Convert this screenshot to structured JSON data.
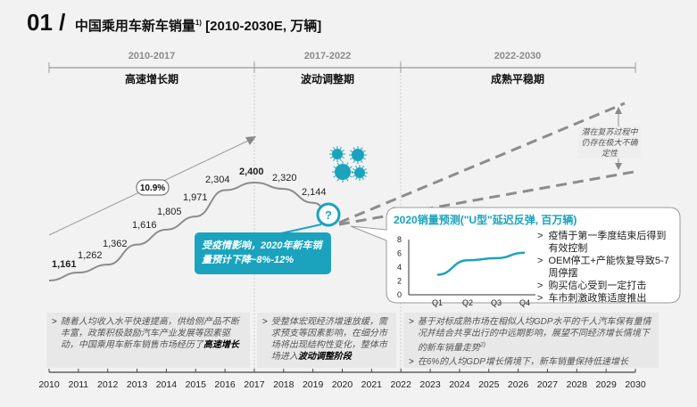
{
  "header": {
    "number": "01 /",
    "title": "中国乘用车新车销量",
    "footnote": "1)",
    "subtitle": "[2010-2030E, 万辆]"
  },
  "periods": [
    {
      "range": "2010-2017",
      "name": "高速增长期"
    },
    {
      "range": "2017-2022",
      "name": "波动调整期"
    },
    {
      "range": "2022-2030",
      "name": "成熟平稳期"
    }
  ],
  "cagr_label": "10.9%",
  "covid_callout": "受疫情影响，2020年新车销量预计下降~8%-12%",
  "question_mark": "?",
  "uncertainty_note": "潜在复苏过程中仍存在极大不确定性",
  "colors": {
    "accent": "#1ba3bd",
    "line": "#8c8c8c",
    "dashed": "#8c8c8c"
  },
  "chart_data": [
    {
      "type": "line",
      "title": "中国乘用车新车销量 [2010-2030E, 万辆]",
      "x": [
        2010,
        2011,
        2012,
        2013,
        2014,
        2015,
        2016,
        2017,
        2018,
        2019
      ],
      "values": [
        1161,
        1262,
        1362,
        1616,
        1805,
        1971,
        2304,
        2400,
        2320,
        2144
      ],
      "value_labels": [
        "1,161",
        "1,262",
        "1,362",
        "1,616",
        "1,805",
        "1,971",
        "2,304",
        "2,400",
        "2,320",
        "2,144"
      ],
      "xticks": [
        "2010",
        "2011",
        "2012",
        "2013",
        "2014",
        "2015",
        "2016",
        "2017",
        "2018",
        "2019",
        "2020",
        "2021",
        "2022",
        "2023",
        "2024",
        "2025",
        "2026",
        "2027",
        "2028",
        "2029",
        "2030"
      ],
      "grid": false
    },
    {
      "type": "line",
      "title": "2020销量预测(\"U型\"延迟反弹, 百万辆)",
      "categories": [
        "Q1",
        "Q2",
        "Q3",
        "Q4"
      ],
      "values": [
        2.9,
        5.0,
        5.3,
        6.1
      ],
      "yticks": [
        "0",
        "2",
        "4",
        "6",
        "8"
      ],
      "ylim": [
        0,
        8
      ]
    }
  ],
  "forecast_bullets": [
    "疫情于第一季度结束后得到有效控制",
    "OEM停工+产能恢复导致5-7周停摆",
    "购买信心受到一定打击",
    "车市刺激政策适度推出"
  ],
  "notes": {
    "period1": {
      "text": "随着人均收入水平快速提高，供给侧产品不断丰富，政策积极鼓励汽车产业发展等因素驱动，中国乘用车新车销售市场经历了",
      "bold": "高速增长"
    },
    "period2": {
      "text": "受整体宏观经济增速放缓，需求预支等因素影响，在细分市场将出现结构性变化，整体市场进入",
      "bold": "波动调整阶段"
    },
    "period3": [
      {
        "text": "基于对标成熟市场在相似人均GDP水平的千人汽车保有量情况并结合共享出行的中远期影响，展望不同经济增长情境下的新车销量走势",
        "sup": "2)"
      },
      {
        "text": "在6%的人均GDP增长情境下，新车销量保持低速增长"
      }
    ]
  },
  "bullet_marker": ">"
}
